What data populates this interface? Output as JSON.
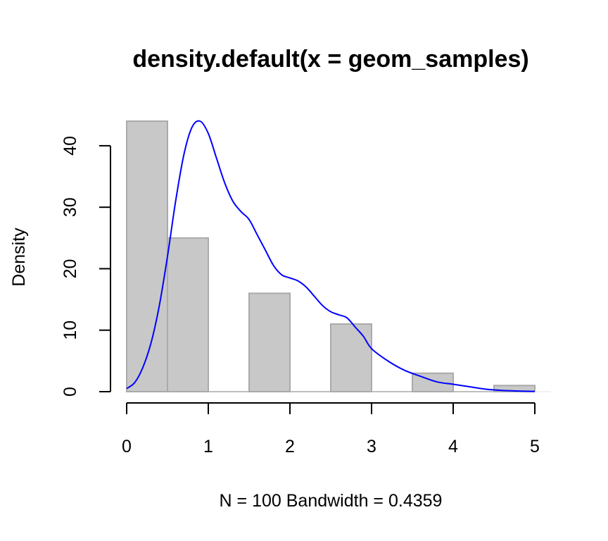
{
  "chart_data": {
    "type": "bar",
    "title": "density.default(x = geom_samples)",
    "xlabel": "N = 100   Bandwidth = 0.4359",
    "ylabel": "Density",
    "xlim": [
      0,
      5
    ],
    "ylim": [
      0,
      44
    ],
    "x_ticks": [
      "0",
      "1",
      "2",
      "3",
      "4",
      "5"
    ],
    "y_ticks": [
      "0",
      "10",
      "20",
      "30",
      "40"
    ],
    "grid": false,
    "bars": [
      {
        "x0": 0.0,
        "x1": 0.5,
        "value": 44
      },
      {
        "x0": 0.5,
        "x1": 1.0,
        "value": 25
      },
      {
        "x0": 1.0,
        "x1": 1.5,
        "value": 0
      },
      {
        "x0": 1.5,
        "x1": 2.0,
        "value": 16
      },
      {
        "x0": 2.0,
        "x1": 2.5,
        "value": 0
      },
      {
        "x0": 2.5,
        "x1": 3.0,
        "value": 11
      },
      {
        "x0": 3.0,
        "x1": 3.5,
        "value": 0
      },
      {
        "x0": 3.5,
        "x1": 4.0,
        "value": 3
      },
      {
        "x0": 4.0,
        "x1": 4.5,
        "value": 0
      },
      {
        "x0": 4.5,
        "x1": 5.0,
        "value": 1
      }
    ],
    "density_curve": {
      "x": [
        0.0,
        0.1,
        0.2,
        0.3,
        0.4,
        0.5,
        0.6,
        0.7,
        0.8,
        0.9,
        1.0,
        1.1,
        1.2,
        1.3,
        1.4,
        1.5,
        1.6,
        1.7,
        1.8,
        1.9,
        2.0,
        2.1,
        2.2,
        2.3,
        2.4,
        2.5,
        2.6,
        2.7,
        2.8,
        2.9,
        3.0,
        3.2,
        3.4,
        3.6,
        3.8,
        4.0,
        4.2,
        4.4,
        4.6,
        4.8,
        5.0
      ],
      "y": [
        0.5,
        1.5,
        4,
        8,
        14,
        22,
        31,
        38.5,
        43,
        44,
        42,
        38,
        34,
        31,
        29.3,
        28,
        25.5,
        23,
        20.5,
        19,
        18.5,
        18,
        17,
        15.5,
        14,
        13,
        12.5,
        12,
        10.5,
        9,
        7,
        5,
        3.5,
        2.5,
        1.6,
        1.2,
        0.8,
        0.4,
        0.2,
        0.1,
        0.05
      ],
      "color": "#0000ff"
    },
    "bar_fill": "#c8c8c8",
    "bar_stroke": "#aaaaaa"
  }
}
